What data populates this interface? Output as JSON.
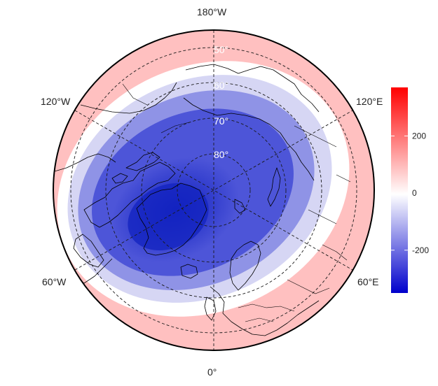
{
  "map": {
    "projection": "north-polar-orthographic",
    "longitude_labels": [
      "180°W",
      "120°W",
      "120°E",
      "60°W",
      "60°E",
      "0°"
    ],
    "latitude_labels": [
      "50°",
      "60°",
      "70°",
      "80°"
    ],
    "field": {
      "description_colormap": "diverging blue-white-red",
      "low_color": "#0000cc",
      "mid_color": "#ffffff",
      "high_color": "#ff0000"
    }
  },
  "colorbar": {
    "ticks": [
      "200",
      "0",
      "-200"
    ],
    "tick_values": [
      200,
      0,
      -200
    ],
    "min": -350,
    "max": 370,
    "colors": [
      "#0000cc",
      "#ffffff",
      "#ff0000"
    ]
  }
}
